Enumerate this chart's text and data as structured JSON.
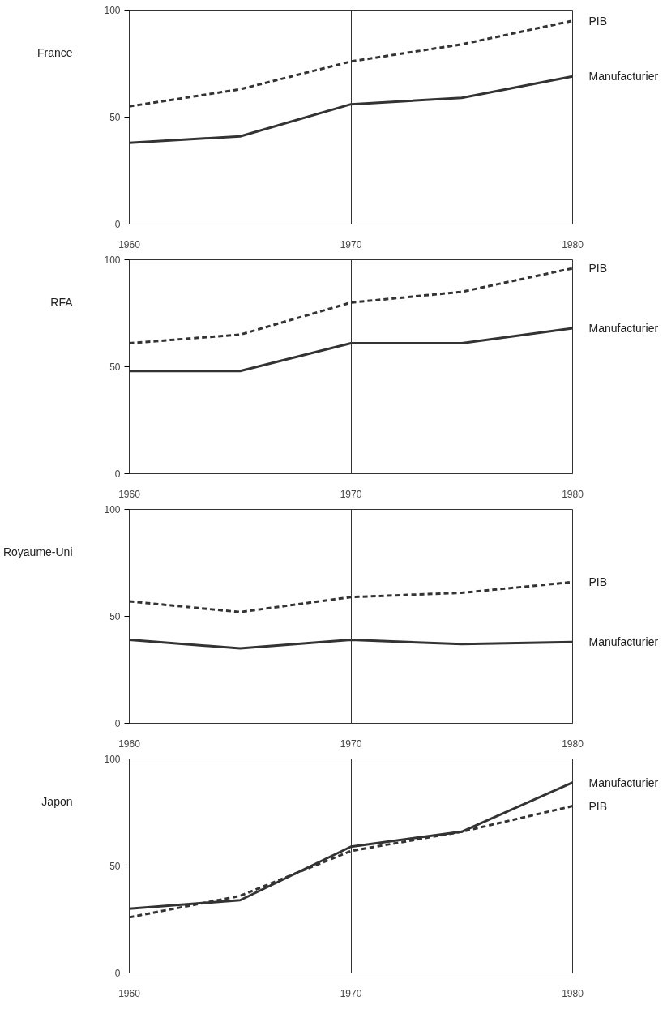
{
  "chart_data": [
    {
      "type": "line",
      "title": "France",
      "x": [
        1960,
        1965,
        1970,
        1975,
        1980
      ],
      "xlim": [
        1960,
        1980
      ],
      "xticks": [
        1960,
        1970,
        1980
      ],
      "ylim": [
        0,
        100
      ],
      "yticks": [
        0,
        50,
        100
      ],
      "grid": "x",
      "series": [
        {
          "name": "PIB",
          "color": "#333333",
          "line_style": "dashed",
          "values": [
            55,
            63,
            76,
            84,
            95
          ]
        },
        {
          "name": "Manufacturier",
          "color": "#333333",
          "line_style": "solid",
          "values": [
            38,
            41,
            56,
            59,
            69
          ]
        }
      ]
    },
    {
      "type": "line",
      "title": "RFA",
      "x": [
        1960,
        1965,
        1970,
        1975,
        1980
      ],
      "xlim": [
        1960,
        1980
      ],
      "xticks": [
        1960,
        1970,
        1980
      ],
      "ylim": [
        0,
        100
      ],
      "yticks": [
        0,
        50,
        100
      ],
      "grid": "x",
      "series": [
        {
          "name": "PIB",
          "color": "#333333",
          "line_style": "dashed",
          "values": [
            61,
            65,
            80,
            85,
            96
          ]
        },
        {
          "name": "Manufacturier",
          "color": "#333333",
          "line_style": "solid",
          "values": [
            48,
            48,
            61,
            61,
            68
          ]
        }
      ]
    },
    {
      "type": "line",
      "title": "Royaume-Uni",
      "x": [
        1960,
        1965,
        1970,
        1975,
        1980
      ],
      "xlim": [
        1960,
        1980
      ],
      "xticks": [
        1960,
        1970,
        1980
      ],
      "ylim": [
        0,
        100
      ],
      "yticks": [
        0,
        50,
        100
      ],
      "grid": "x",
      "series": [
        {
          "name": "PIB",
          "color": "#333333",
          "line_style": "dashed",
          "values": [
            57,
            52,
            59,
            61,
            66
          ]
        },
        {
          "name": "Manufacturier",
          "color": "#333333",
          "line_style": "solid",
          "values": [
            39,
            35,
            39,
            37,
            38
          ]
        }
      ]
    },
    {
      "type": "line",
      "title": "Japon",
      "x": [
        1960,
        1965,
        1970,
        1975,
        1980
      ],
      "xlim": [
        1960,
        1980
      ],
      "xticks": [
        1960,
        1970,
        1980
      ],
      "ylim": [
        0,
        100
      ],
      "yticks": [
        0,
        50,
        100
      ],
      "grid": "x",
      "series": [
        {
          "name": "Manufacturier",
          "color": "#333333",
          "line_style": "solid",
          "values": [
            30,
            34,
            59,
            66,
            89
          ]
        },
        {
          "name": "PIB",
          "color": "#333333",
          "line_style": "dashed",
          "values": [
            26,
            36,
            57,
            66,
            78
          ]
        }
      ]
    }
  ]
}
